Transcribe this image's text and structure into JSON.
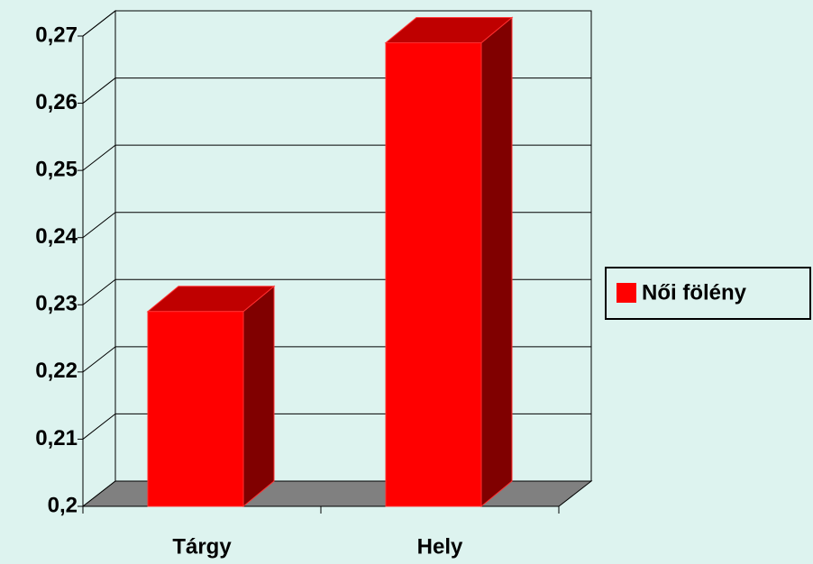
{
  "chart_data": {
    "type": "bar3d",
    "categories": [
      "Tárgy",
      "Hely"
    ],
    "series": [
      {
        "name": "Női fölény",
        "color": "#ff0000",
        "values": [
          0.229,
          0.269
        ]
      }
    ],
    "ylim": [
      0.2,
      0.27
    ],
    "yticks": [
      {
        "value": 0.2,
        "label": "0,2"
      },
      {
        "value": 0.21,
        "label": "0,21"
      },
      {
        "value": 0.22,
        "label": "0,22"
      },
      {
        "value": 0.23,
        "label": "0,23"
      },
      {
        "value": 0.24,
        "label": "0,24"
      },
      {
        "value": 0.25,
        "label": "0,25"
      },
      {
        "value": 0.26,
        "label": "0,26"
      },
      {
        "value": 0.27,
        "label": "0,27"
      }
    ],
    "grid": true,
    "legend": "right"
  }
}
